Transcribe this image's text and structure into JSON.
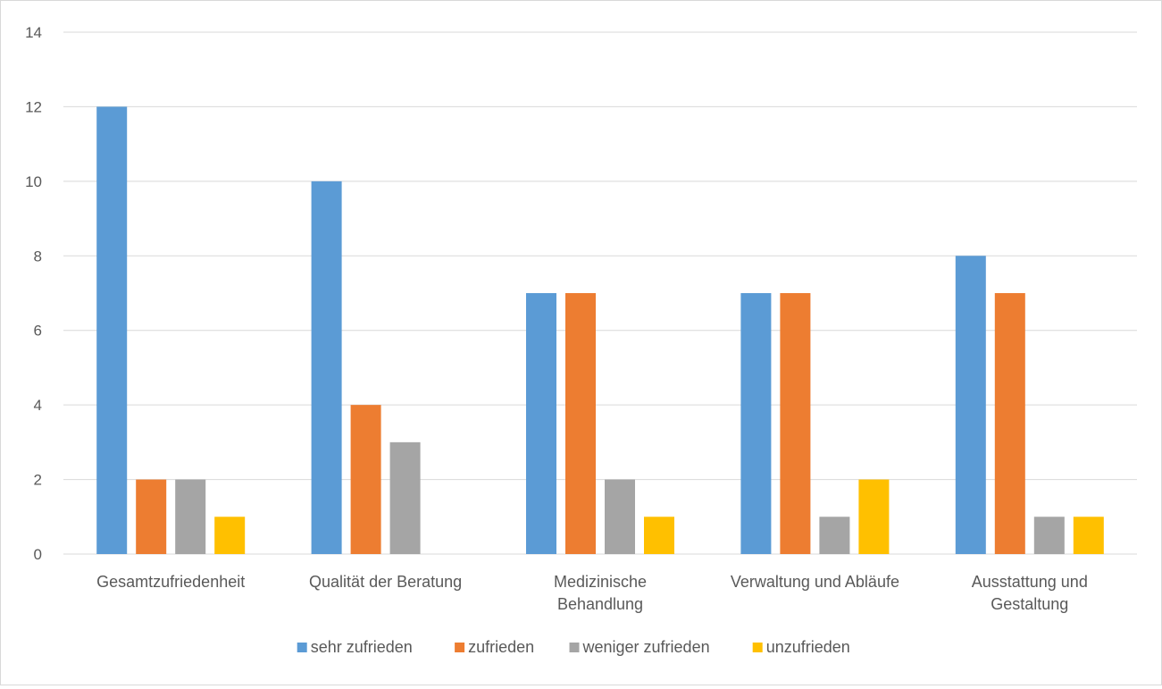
{
  "chart_data": {
    "type": "bar",
    "title": "",
    "xlabel": "",
    "ylabel": "",
    "ylim": [
      0,
      14
    ],
    "yticks": [
      0,
      2,
      4,
      6,
      8,
      10,
      12,
      14
    ],
    "grid": true,
    "legend_position": "bottom",
    "categories": [
      [
        "Gesamtzufriedenheit"
      ],
      [
        "Qualität der Beratung"
      ],
      [
        "Medizinische",
        "Behandlung"
      ],
      [
        "Verwaltung und Abläufe"
      ],
      [
        "Ausstattung und",
        "Gestaltung"
      ]
    ],
    "series": [
      {
        "name": "sehr zufrieden",
        "color": "#5b9bd5",
        "values": [
          12,
          10,
          7,
          7,
          8
        ]
      },
      {
        "name": "zufrieden",
        "color": "#ed7d31",
        "values": [
          2,
          4,
          7,
          7,
          7
        ]
      },
      {
        "name": "weniger zufrieden",
        "color": "#a5a5a5",
        "values": [
          2,
          3,
          2,
          1,
          1
        ]
      },
      {
        "name": "unzufrieden",
        "color": "#ffc000",
        "values": [
          1,
          0,
          1,
          2,
          1
        ]
      }
    ]
  }
}
